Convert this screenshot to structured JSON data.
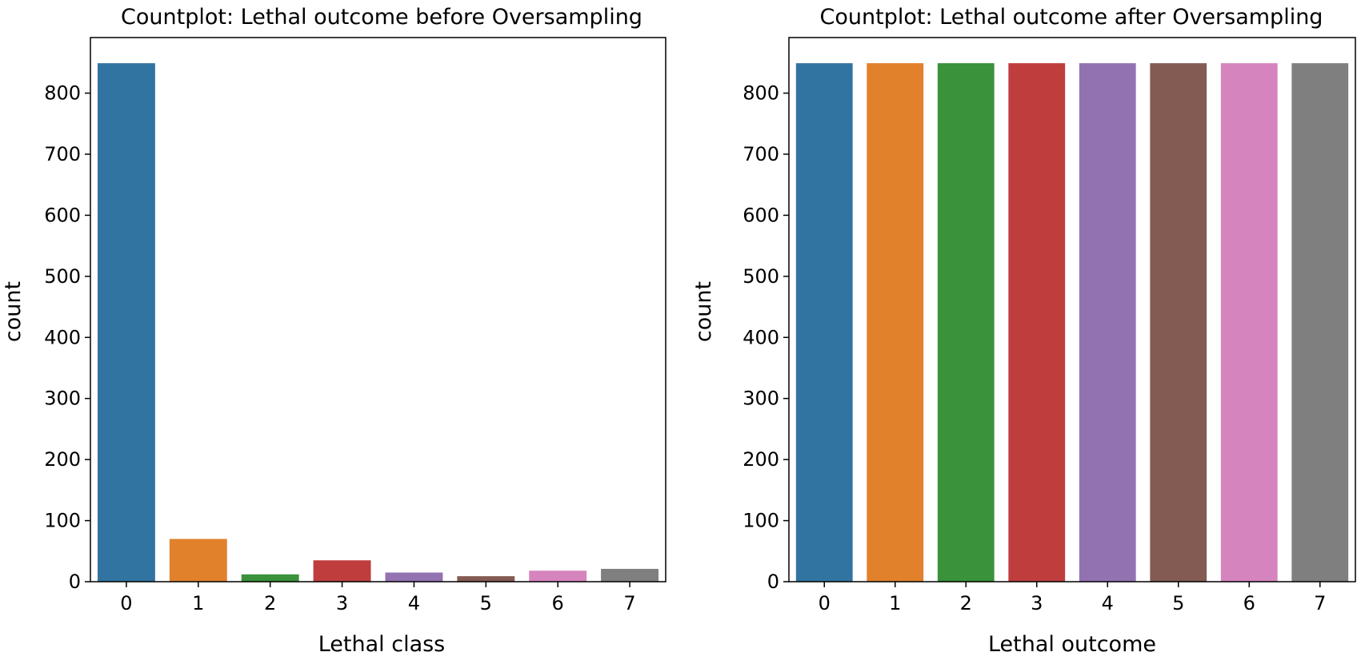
{
  "chart_data": [
    {
      "type": "bar",
      "title": "Countplot: Lethal outcome before Oversampling",
      "xlabel": "Lethal class",
      "ylabel": "count",
      "categories": [
        "0",
        "1",
        "2",
        "3",
        "4",
        "5",
        "6",
        "7"
      ],
      "values": [
        849,
        70,
        12,
        35,
        15,
        9,
        18,
        21
      ],
      "colors": [
        "#3274a1",
        "#e1812c",
        "#3a923a",
        "#c03d3e",
        "#9372b2",
        "#845b53",
        "#d684bd",
        "#7f7f7f"
      ],
      "yticks": [
        0,
        100,
        200,
        300,
        400,
        500,
        600,
        700,
        800
      ],
      "ylim": [
        0,
        891
      ],
      "grid": false,
      "legend": "none"
    },
    {
      "type": "bar",
      "title": "Countplot: Lethal outcome after Oversampling",
      "xlabel": "Lethal outcome",
      "ylabel": "count",
      "categories": [
        "0",
        "1",
        "2",
        "3",
        "4",
        "5",
        "6",
        "7"
      ],
      "values": [
        849,
        849,
        849,
        849,
        849,
        849,
        849,
        849
      ],
      "colors": [
        "#3274a1",
        "#e1812c",
        "#3a923a",
        "#c03d3e",
        "#9372b2",
        "#845b53",
        "#d684bd",
        "#7f7f7f"
      ],
      "yticks": [
        0,
        100,
        200,
        300,
        400,
        500,
        600,
        700,
        800
      ],
      "ylim": [
        0,
        891
      ],
      "grid": false,
      "legend": "none"
    }
  ]
}
